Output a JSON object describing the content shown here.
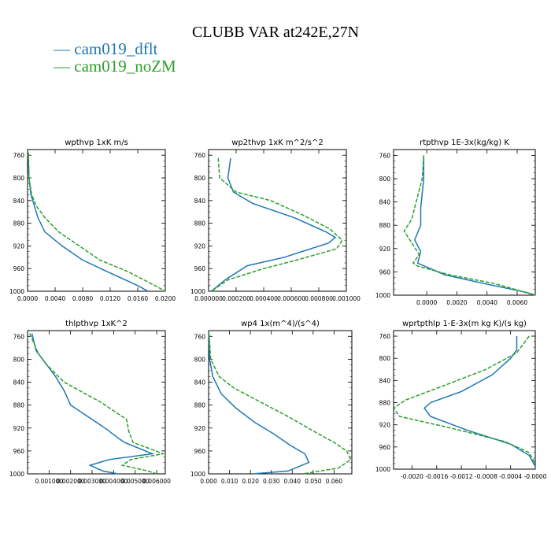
{
  "title": "CLUBB VAR at242E,27N",
  "legend": [
    {
      "label": "cam019_dflt",
      "color": "#1f77b4",
      "dash": false
    },
    {
      "label": "cam019_noZM",
      "color": "#2ca02c",
      "dash": true
    }
  ],
  "chart_data": [
    {
      "type": "line",
      "title": "wpthvp   1xK m/s",
      "xlim": [
        0,
        0.02
      ],
      "ylim": [
        1000,
        750
      ],
      "xticks": [
        "0.0000",
        "0.0040",
        "0.0080",
        "0.0120",
        "0.0160",
        "0.0200"
      ],
      "xtick_values": [
        0,
        0.004,
        0.008,
        0.012,
        0.016,
        0.02
      ],
      "yticks": [
        760,
        800,
        840,
        880,
        920,
        960,
        1000
      ],
      "series": [
        {
          "name": "cam019_dflt",
          "points": [
            [
              0.0001,
              755
            ],
            [
              0.0002,
              800
            ],
            [
              0.0005,
              830
            ],
            [
              0.001,
              850
            ],
            [
              0.0015,
              870
            ],
            [
              0.0025,
              895
            ],
            [
              0.005,
              920
            ],
            [
              0.008,
              945
            ],
            [
              0.0115,
              965
            ],
            [
              0.016,
              990
            ],
            [
              0.0175,
              1000
            ]
          ]
        },
        {
          "name": "cam019_noZM",
          "points": [
            [
              0.0001,
              755
            ],
            [
              0.0002,
              800
            ],
            [
              0.0006,
              830
            ],
            [
              0.0013,
              850
            ],
            [
              0.0025,
              870
            ],
            [
              0.0045,
              895
            ],
            [
              0.0075,
              920
            ],
            [
              0.0105,
              945
            ],
            [
              0.0145,
              965
            ],
            [
              0.0185,
              990
            ],
            [
              0.02,
              1000
            ]
          ]
        }
      ]
    },
    {
      "type": "line",
      "title": "wp2thvp   1xK m^2/s^2",
      "xlim": [
        0,
        0.001
      ],
      "ylim": [
        1000,
        750
      ],
      "xticks": [
        "0.000000",
        "0.000200",
        "0.000400",
        "0.000600",
        "0.000800",
        "0.001000"
      ],
      "xtick_values": [
        0,
        0.0002,
        0.0004,
        0.0006,
        0.0008,
        0.001
      ],
      "yticks": [
        760,
        800,
        840,
        880,
        920,
        960,
        1000
      ],
      "series": [
        {
          "name": "cam019_dflt",
          "points": [
            [
              0.00016,
              765
            ],
            [
              0.00014,
              800
            ],
            [
              0.00018,
              825
            ],
            [
              0.00032,
              845
            ],
            [
              0.00062,
              870
            ],
            [
              0.00085,
              895
            ],
            [
              0.00092,
              905
            ],
            [
              0.00087,
              915
            ],
            [
              0.00055,
              940
            ],
            [
              0.00028,
              955
            ],
            [
              0.00012,
              980
            ],
            [
              2e-05,
              1000
            ]
          ]
        },
        {
          "name": "cam019_noZM",
          "points": [
            [
              7e-05,
              765
            ],
            [
              8e-05,
              800
            ],
            [
              0.0002,
              825
            ],
            [
              0.00045,
              840
            ],
            [
              0.00068,
              865
            ],
            [
              0.00088,
              890
            ],
            [
              0.00097,
              910
            ],
            [
              0.00093,
              925
            ],
            [
              0.00064,
              945
            ],
            [
              0.0004,
              960
            ],
            [
              0.00014,
              980
            ],
            [
              2e-05,
              1000
            ]
          ]
        }
      ]
    },
    {
      "type": "line",
      "title": "rtpthvp   1E-3x(kg/kg) K",
      "xlim": [
        -0.0022,
        0.0072
      ],
      "ylim": [
        1000,
        750
      ],
      "xticks": [
        "0.0000",
        "0.0020",
        "0.0040",
        "0.0060"
      ],
      "xtick_values": [
        0,
        0.002,
        0.004,
        0.006
      ],
      "yticks": [
        760,
        800,
        840,
        880,
        920,
        960,
        1000
      ],
      "series": [
        {
          "name": "cam019_dflt",
          "points": [
            [
              -0.0002,
              760
            ],
            [
              -0.0002,
              800
            ],
            [
              -0.0004,
              850
            ],
            [
              -0.0004,
              880
            ],
            [
              -0.0008,
              905
            ],
            [
              -0.0004,
              925
            ],
            [
              -0.0006,
              945
            ],
            [
              0.0012,
              965
            ],
            [
              0.0038,
              980
            ],
            [
              0.0066,
              995
            ],
            [
              0.0072,
              1000
            ]
          ]
        },
        {
          "name": "cam019_noZM",
          "points": [
            [
              -0.0002,
              760
            ],
            [
              -0.0003,
              800
            ],
            [
              -0.0008,
              850
            ],
            [
              -0.001,
              870
            ],
            [
              -0.0015,
              890
            ],
            [
              -0.001,
              910
            ],
            [
              -0.0005,
              930
            ],
            [
              -0.0009,
              945
            ],
            [
              -0.0006,
              950
            ],
            [
              0.0015,
              965
            ],
            [
              0.0045,
              980
            ],
            [
              0.0072,
              1000
            ]
          ]
        }
      ]
    },
    {
      "type": "line",
      "title": "thlpthvp   1xK^2",
      "xlim": [
        0,
        0.0064
      ],
      "ylim": [
        1000,
        750
      ],
      "xticks": [
        "0.001000",
        "0.002000",
        "0.003000",
        "0.004000",
        "0.005000",
        "0.006000"
      ],
      "xtick_values": [
        0.001,
        0.002,
        0.003,
        0.004,
        0.005,
        0.006
      ],
      "yticks": [
        760,
        800,
        840,
        880,
        920,
        960,
        1000
      ],
      "series": [
        {
          "name": "cam019_dflt",
          "points": [
            [
              0.0002,
              755
            ],
            [
              0.0004,
              785
            ],
            [
              0.0007,
              800
            ],
            [
              0.0013,
              830
            ],
            [
              0.0017,
              855
            ],
            [
              0.002,
              880
            ],
            [
              0.0028,
              900
            ],
            [
              0.0036,
              920
            ],
            [
              0.0043,
              940
            ],
            [
              0.0045,
              945
            ],
            [
              0.0058,
              965
            ],
            [
              0.0038,
              975
            ],
            [
              0.0029,
              985
            ],
            [
              0.0035,
              995
            ],
            [
              0.0042,
              1000
            ]
          ]
        },
        {
          "name": "cam019_noZM",
          "points": [
            [
              0.0001,
              755
            ],
            [
              0.0005,
              790
            ],
            [
              0.0009,
              810
            ],
            [
              0.0017,
              840
            ],
            [
              0.0034,
              875
            ],
            [
              0.0046,
              905
            ],
            [
              0.0047,
              925
            ],
            [
              0.0048,
              935
            ],
            [
              0.0049,
              945
            ],
            [
              0.0063,
              965
            ],
            [
              0.0048,
              975
            ],
            [
              0.0044,
              985
            ],
            [
              0.0056,
              995
            ],
            [
              0.006,
              1000
            ]
          ]
        }
      ]
    },
    {
      "type": "line",
      "title": "wp4   1x(m^4)/(s^4)",
      "xlim": [
        0,
        0.0685
      ],
      "ylim": [
        1000,
        750
      ],
      "xticks": [
        "0.000",
        "0.010",
        "0.020",
        "0.030",
        "0.040",
        "0.050",
        "0.060"
      ],
      "xtick_values": [
        0,
        0.01,
        0.02,
        0.03,
        0.04,
        0.05,
        0.06
      ],
      "yticks": [
        760,
        800,
        840,
        880,
        920,
        960,
        1000
      ],
      "series": [
        {
          "name": "cam019_dflt",
          "points": [
            [
              0.0002,
              755
            ],
            [
              0.0005,
              800
            ],
            [
              0.002,
              830
            ],
            [
              0.006,
              860
            ],
            [
              0.013,
              885
            ],
            [
              0.022,
              910
            ],
            [
              0.031,
              930
            ],
            [
              0.039,
              950
            ],
            [
              0.046,
              965
            ],
            [
              0.048,
              980
            ],
            [
              0.038,
              995
            ],
            [
              0.021,
              1000
            ]
          ]
        },
        {
          "name": "cam019_noZM",
          "points": [
            [
              0.0002,
              755
            ],
            [
              0.001,
              800
            ],
            [
              0.005,
              830
            ],
            [
              0.012,
              850
            ],
            [
              0.025,
              875
            ],
            [
              0.038,
              900
            ],
            [
              0.05,
              925
            ],
            [
              0.06,
              945
            ],
            [
              0.066,
              960
            ],
            [
              0.068,
              975
            ],
            [
              0.062,
              990
            ],
            [
              0.045,
              1000
            ]
          ]
        }
      ]
    },
    {
      "type": "line",
      "title": "wprtpthlp   1-E-3x(m kg K)/(s kg)",
      "xlim": [
        -0.0023,
        0.0
      ],
      "ylim": [
        1000,
        750
      ],
      "xticks": [
        "-0.0020",
        "-0.0016",
        "-0.0012",
        "-0.0008",
        "-0.0004",
        "-0.0000"
      ],
      "xtick_values": [
        -0.002,
        -0.0016,
        -0.0012,
        -0.0008,
        -0.0004,
        0
      ],
      "yticks": [
        760,
        800,
        840,
        880,
        920,
        960,
        1000
      ],
      "series": [
        {
          "name": "cam019_dflt",
          "points": [
            [
              -0.0003,
              760
            ],
            [
              -0.0003,
              785
            ],
            [
              -0.0004,
              800
            ],
            [
              -0.0007,
              830
            ],
            [
              -0.0012,
              860
            ],
            [
              -0.0017,
              880
            ],
            [
              -0.0018,
              890
            ],
            [
              -0.0017,
              905
            ],
            [
              -0.0011,
              930
            ],
            [
              -0.0004,
              955
            ],
            [
              -0.0001,
              975
            ],
            [
              0,
              995
            ]
          ]
        },
        {
          "name": "cam019_noZM",
          "points": [
            [
              -0.0001,
              760
            ],
            [
              -0.0003,
              790
            ],
            [
              -0.0008,
              820
            ],
            [
              -0.0015,
              850
            ],
            [
              -0.0021,
              875
            ],
            [
              -0.0023,
              890
            ],
            [
              -0.0022,
              905
            ],
            [
              -0.0014,
              925
            ],
            [
              -0.0005,
              950
            ],
            [
              -0.0001,
              970
            ],
            [
              0,
              990
            ]
          ]
        }
      ]
    }
  ]
}
